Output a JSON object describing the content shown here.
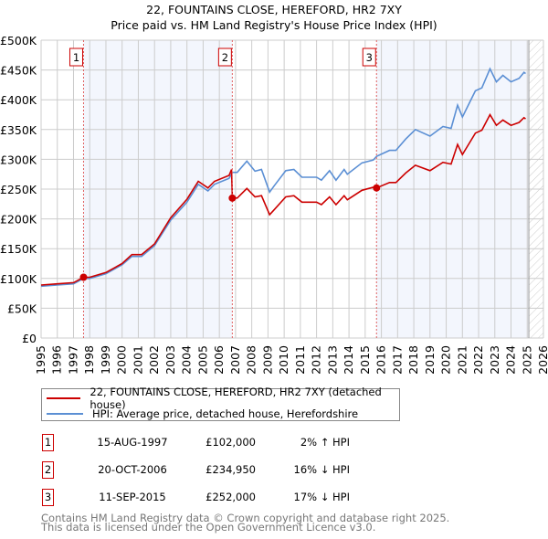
{
  "chart_data": {
    "type": "line",
    "title": "22, FOUNTAINS CLOSE, HEREFORD, HR2 7XY",
    "subtitle": "Price paid vs. HM Land Registry's House Price Index (HPI)",
    "xlim": [
      1995,
      2026
    ],
    "ylim": [
      0,
      500000
    ],
    "x_ticks": [
      "1995",
      "1996",
      "1997",
      "1998",
      "1999",
      "2000",
      "2001",
      "2002",
      "2003",
      "2004",
      "2005",
      "2006",
      "2007",
      "2008",
      "2009",
      "2010",
      "2011",
      "2012",
      "2013",
      "2014",
      "2015",
      "2016",
      "2017",
      "2018",
      "2019",
      "2020",
      "2021",
      "2022",
      "2023",
      "2024",
      "2025",
      "2026"
    ],
    "y_ticks": [
      {
        "v": 0,
        "label": "£0"
      },
      {
        "v": 50000,
        "label": "£50K"
      },
      {
        "v": 100000,
        "label": "£100K"
      },
      {
        "v": 150000,
        "label": "£150K"
      },
      {
        "v": 200000,
        "label": "£200K"
      },
      {
        "v": 250000,
        "label": "£250K"
      },
      {
        "v": 300000,
        "label": "£300K"
      },
      {
        "v": 350000,
        "label": "£350K"
      },
      {
        "v": 400000,
        "label": "£400K"
      },
      {
        "v": 450000,
        "label": "£450K"
      },
      {
        "v": 500000,
        "label": "£500K"
      }
    ],
    "grid": true,
    "forecast_hatch_from": 2025.1,
    "shaded_ranges": [
      [
        1997.62,
        2006.8
      ],
      [
        2015.7,
        2025.1
      ]
    ],
    "series": [
      {
        "name": "22, FOUNTAINS CLOSE, HEREFORD, HR2 7XY (detached house)",
        "color": "#cc0000",
        "x": [
          1995.0,
          1996.0,
          1997.0,
          1997.62,
          1998.0,
          1999.0,
          2000.0,
          2000.6,
          2001.2,
          2002.0,
          2003.0,
          2004.0,
          2004.7,
          2005.3,
          2005.7,
          2006.6,
          2006.75,
          2006.8,
          2007.1,
          2007.7,
          2008.2,
          2008.6,
          2009.1,
          2009.37,
          2010.1,
          2010.6,
          2011.1,
          2012.0,
          2012.3,
          2012.8,
          2013.2,
          2013.7,
          2013.9,
          2014.8,
          2015.5,
          2015.7,
          2016.5,
          2016.9,
          2017.5,
          2018.1,
          2019.0,
          2019.8,
          2020.3,
          2020.7,
          2021.0,
          2021.8,
          2022.2,
          2022.7,
          2023.1,
          2023.5,
          2024.0,
          2024.5,
          2024.8,
          2024.9
        ],
        "y": [
          89000,
          91000,
          93000,
          102000,
          102000,
          110000,
          125000,
          140000,
          140000,
          158000,
          202000,
          233000,
          263000,
          252000,
          263000,
          273000,
          283000,
          234950,
          235000,
          251000,
          237000,
          239000,
          207000,
          215000,
          237000,
          239000,
          228000,
          228000,
          224000,
          237000,
          224000,
          239000,
          232000,
          248000,
          253000,
          252000,
          261000,
          261000,
          277000,
          290000,
          281000,
          295000,
          292000,
          325000,
          308000,
          344000,
          349000,
          375000,
          357000,
          366000,
          357000,
          362000,
          370000,
          368000
        ]
      },
      {
        "name": "HPI: Average price, detached house, Herefordshire",
        "color": "#5b8fd4",
        "x": [
          1995.0,
          1996.0,
          1997.0,
          1997.62,
          1998.0,
          1999.0,
          2000.0,
          2000.6,
          2001.2,
          2002.0,
          2003.0,
          2004.0,
          2004.7,
          2005.3,
          2005.7,
          2006.6,
          2006.8,
          2007.1,
          2007.7,
          2008.2,
          2008.6,
          2009.1,
          2009.37,
          2010.1,
          2010.6,
          2011.1,
          2012.0,
          2012.3,
          2012.8,
          2013.2,
          2013.7,
          2013.9,
          2014.8,
          2015.5,
          2015.7,
          2016.5,
          2016.9,
          2017.5,
          2018.1,
          2019.0,
          2019.8,
          2020.3,
          2020.7,
          2021.0,
          2021.8,
          2022.2,
          2022.7,
          2023.1,
          2023.5,
          2024.0,
          2024.5,
          2024.8,
          2024.9
        ],
        "y": [
          87000,
          89000,
          91000,
          100000,
          100000,
          108000,
          123000,
          137000,
          137000,
          155000,
          198000,
          228000,
          258000,
          247000,
          258000,
          268000,
          278000,
          278000,
          297000,
          280000,
          283000,
          245000,
          255000,
          281000,
          283000,
          270000,
          270000,
          265000,
          281000,
          265000,
          283000,
          275000,
          294000,
          299000,
          305000,
          315000,
          315000,
          334000,
          350000,
          339000,
          355000,
          352000,
          391000,
          371000,
          415000,
          420000,
          452000,
          430000,
          441000,
          430000,
          436000,
          446000,
          444000
        ]
      }
    ],
    "sales": [
      {
        "id": "1",
        "x": 1997.62,
        "price": 102000
      },
      {
        "id": "2",
        "x": 2006.8,
        "price": 234950
      },
      {
        "id": "3",
        "x": 2015.7,
        "price": 252000
      }
    ]
  },
  "legend": {
    "property": "22, FOUNTAINS CLOSE, HEREFORD, HR2 7XY (detached house)",
    "hpi": "HPI: Average price, detached house, Herefordshire"
  },
  "transactions": [
    {
      "num": "1",
      "date": "15-AUG-1997",
      "price": "£102,000",
      "hpi": "2% ↑ HPI"
    },
    {
      "num": "2",
      "date": "20-OCT-2006",
      "price": "£234,950",
      "hpi": "16% ↓ HPI"
    },
    {
      "num": "3",
      "date": "11-SEP-2015",
      "price": "£252,000",
      "hpi": "17% ↓ HPI"
    }
  ],
  "footer": {
    "line1": "Contains HM Land Registry data © Crown copyright and database right 2025.",
    "line2": "This data is licensed under the Open Government Licence v3.0."
  }
}
